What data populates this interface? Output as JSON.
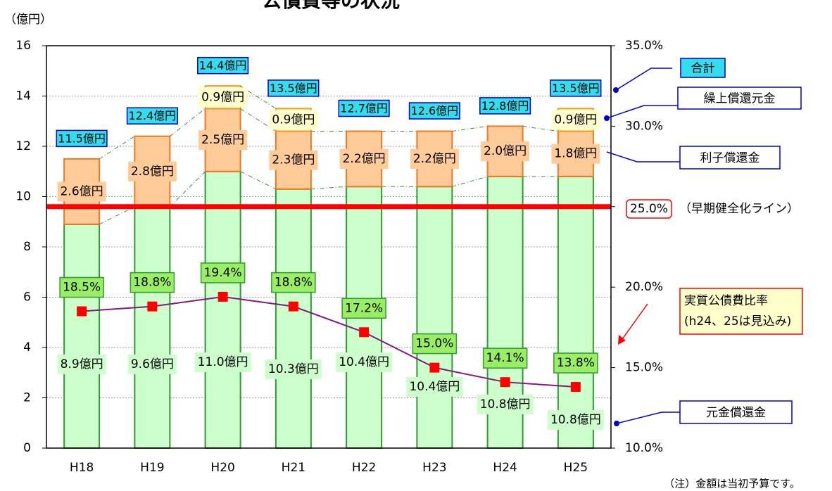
{
  "chart_data": {
    "type": "bar",
    "stacked": true,
    "title": "公債費等の状況",
    "y_label": "（億円）",
    "note": "（注）金額は当初予算です。",
    "categories": [
      "H18",
      "H19",
      "H20",
      "H21",
      "H22",
      "H23",
      "H24",
      "H25"
    ],
    "ylim": [
      0,
      16
    ],
    "yticks": [
      0,
      2,
      4,
      6,
      8,
      10,
      12,
      14,
      16
    ],
    "y2lim": [
      10,
      35
    ],
    "y2ticks": [
      {
        "value": 10,
        "label": "10.0%"
      },
      {
        "value": 15,
        "label": "15.0%"
      },
      {
        "value": 20,
        "label": "20.0%"
      },
      {
        "value": 25,
        "label": "25.0%"
      },
      {
        "value": 30,
        "label": "30.0%"
      },
      {
        "value": 35,
        "label": "35.0%"
      }
    ],
    "grid": true,
    "series": [
      {
        "name": "元金償還金",
        "color": "#ccffcc",
        "border": "#339933",
        "values": [
          8.9,
          9.6,
          11.0,
          10.3,
          10.4,
          10.4,
          10.8,
          10.8
        ],
        "value_labels": [
          "8.9億円",
          "9.6億円",
          "11.0億円",
          "10.3億円",
          "10.4億円",
          "10.4億円",
          "10.8億円",
          "10.8億円"
        ]
      },
      {
        "name": "利子償還金",
        "color": "#ffcc99",
        "border": "#ee7722",
        "values": [
          2.6,
          2.8,
          2.5,
          2.3,
          2.2,
          2.2,
          2.0,
          1.8
        ],
        "value_labels": [
          "2.6億円",
          "2.8億円",
          "2.5億円",
          "2.3億円",
          "2.2億円",
          "2.2億円",
          "2.0億円",
          "1.8億円"
        ]
      },
      {
        "name": "繰上償還元金",
        "color": "#ffffcc",
        "border": "#ee9922",
        "values": [
          null,
          null,
          0.9,
          0.9,
          null,
          null,
          null,
          0.9
        ],
        "value_labels": [
          null,
          null,
          "0.9億円",
          "0.9億円",
          null,
          null,
          null,
          "0.9億円"
        ]
      },
      {
        "name": "合計",
        "type": "total",
        "color": "#33ddee",
        "border": "#0000cc",
        "values": [
          11.5,
          12.4,
          14.4,
          13.5,
          12.7,
          12.6,
          12.8,
          13.5
        ],
        "value_labels": [
          "11.5億円",
          "12.4億円",
          "14.4億円",
          "13.5億円",
          "12.7億円",
          "12.6億円",
          "12.8億円",
          "13.5億円"
        ]
      },
      {
        "name": "実質公債費比率",
        "type": "line",
        "axis": "y2",
        "color": "#801a80",
        "marker_color": "#ff0000",
        "values": [
          18.5,
          18.8,
          19.4,
          18.8,
          17.2,
          15.0,
          14.1,
          13.8
        ],
        "value_labels": [
          "18.5%",
          "18.8%",
          "19.4%",
          "18.8%",
          "17.2%",
          "15.0%",
          "14.1%",
          "13.8%"
        ]
      }
    ],
    "legend_note": "(h24、25は見込み)",
    "reference_line": {
      "value": 25,
      "axis": "y2",
      "label": "25.0%",
      "text": "（早期健全化ライン）",
      "color": "#ff0000"
    }
  }
}
